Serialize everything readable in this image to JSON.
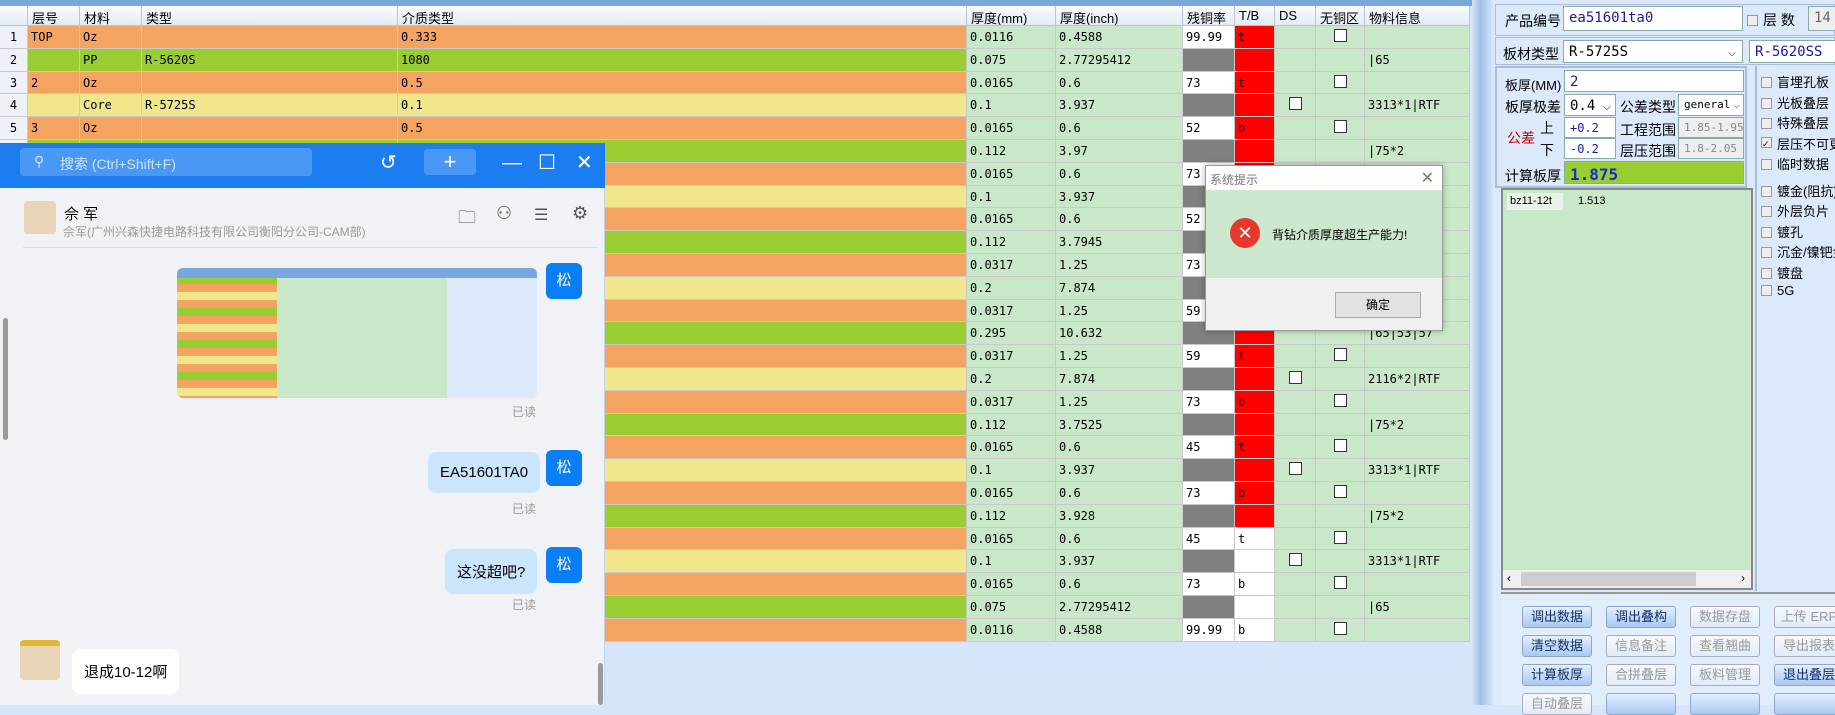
{
  "grid": {
    "headers": [
      "",
      "层号",
      "材料",
      "类型",
      "介质类型",
      "厚度(mm)",
      "厚度(inch)",
      "残铜率",
      "T/B",
      "DS",
      "无铜区",
      "物料信息"
    ],
    "rows": [
      {
        "n": "1",
        "layer": "TOP",
        "mat": "Oz",
        "type": "",
        "diel": "0.333",
        "mm": "0.0116",
        "inch": "0.4588",
        "res": "99.99",
        "tb": "t",
        "tb_red": true,
        "ds": false,
        "nocu": true,
        "info": "",
        "kind": "cu"
      },
      {
        "n": "2",
        "layer": "",
        "mat": "PP",
        "type": "R-5620S",
        "diel": "1080",
        "mm": "0.075",
        "inch": "2.77295412",
        "res": "",
        "tb": "",
        "tb_red": true,
        "ds": false,
        "nocu": false,
        "info": "|65",
        "kind": "pp"
      },
      {
        "n": "3",
        "layer": "2",
        "mat": "Oz",
        "type": "",
        "diel": "0.5",
        "mm": "0.0165",
        "inch": "0.6",
        "res": "73",
        "tb": "t",
        "tb_red": true,
        "ds": false,
        "nocu": true,
        "info": "",
        "kind": "cu"
      },
      {
        "n": "4",
        "layer": "",
        "mat": "Core",
        "type": "R-5725S",
        "diel": "0.1",
        "mm": "0.1",
        "inch": "3.937",
        "res": "",
        "tb": "",
        "tb_red": true,
        "ds": true,
        "nocu": false,
        "info": "3313*1|RTF",
        "kind": "core"
      },
      {
        "n": "5",
        "layer": "3",
        "mat": "Oz",
        "type": "",
        "diel": "0.5",
        "mm": "0.0165",
        "inch": "0.6",
        "res": "52",
        "tb": "b",
        "tb_red": true,
        "ds": false,
        "nocu": true,
        "info": "",
        "kind": "cu"
      },
      {
        "n": "",
        "mm": "0.112",
        "inch": "3.97",
        "res": "",
        "tb": "",
        "tb_red": true,
        "ds": false,
        "nocu": false,
        "info": "|75*2",
        "kind": "pp"
      },
      {
        "n": "",
        "mm": "0.0165",
        "inch": "0.6",
        "res": "73",
        "tb": "",
        "tb_red": true,
        "ds": false,
        "nocu": true,
        "info": "",
        "kind": "cu"
      },
      {
        "n": "",
        "mm": "0.1",
        "inch": "3.937",
        "res": "",
        "tb": "",
        "tb_red": true,
        "ds": true,
        "nocu": false,
        "info": "",
        "kind": "core"
      },
      {
        "n": "",
        "mm": "0.0165",
        "inch": "0.6",
        "res": "52",
        "tb": "",
        "tb_red": true,
        "ds": false,
        "nocu": true,
        "info": "",
        "kind": "cu"
      },
      {
        "n": "",
        "mm": "0.112",
        "inch": "3.7945",
        "res": "",
        "tb": "",
        "tb_red": true,
        "ds": false,
        "nocu": false,
        "info": "",
        "kind": "pp"
      },
      {
        "n": "",
        "mm": "0.0317",
        "inch": "1.25",
        "res": "73",
        "tb": "",
        "tb_red": true,
        "ds": false,
        "nocu": true,
        "info": "",
        "kind": "cu"
      },
      {
        "n": "",
        "mm": "0.2",
        "inch": "7.874",
        "res": "",
        "tb": "",
        "tb_red": true,
        "ds": true,
        "nocu": false,
        "info": "",
        "kind": "core"
      },
      {
        "n": "",
        "mm": "0.0317",
        "inch": "1.25",
        "res": "59",
        "tb": "",
        "tb_red": true,
        "ds": false,
        "nocu": true,
        "info": "",
        "kind": "cu"
      },
      {
        "n": "",
        "mm": "0.295",
        "inch": "10.632",
        "res": "",
        "tb": "",
        "tb_red": true,
        "ds": false,
        "nocu": false,
        "info": "|65|53|57",
        "kind": "pp"
      },
      {
        "n": "",
        "mm": "0.0317",
        "inch": "1.25",
        "res": "59",
        "tb": "t",
        "tb_red": true,
        "ds": false,
        "nocu": true,
        "info": "",
        "kind": "cu"
      },
      {
        "n": "",
        "mm": "0.2",
        "inch": "7.874",
        "res": "",
        "tb": "",
        "tb_red": true,
        "ds": true,
        "nocu": false,
        "info": "2116*2|RTF",
        "kind": "core"
      },
      {
        "n": "",
        "mm": "0.0317",
        "inch": "1.25",
        "res": "73",
        "tb": "b",
        "tb_red": true,
        "ds": false,
        "nocu": true,
        "info": "",
        "kind": "cu"
      },
      {
        "n": "",
        "mm": "0.112",
        "inch": "3.7525",
        "res": "",
        "tb": "",
        "tb_red": true,
        "ds": false,
        "nocu": false,
        "info": "|75*2",
        "kind": "pp"
      },
      {
        "n": "",
        "mm": "0.0165",
        "inch": "0.6",
        "res": "45",
        "tb": "t",
        "tb_red": true,
        "ds": false,
        "nocu": true,
        "info": "",
        "kind": "cu"
      },
      {
        "n": "",
        "mm": "0.1",
        "inch": "3.937",
        "res": "",
        "tb": "",
        "tb_red": true,
        "ds": true,
        "nocu": false,
        "info": "3313*1|RTF",
        "kind": "core"
      },
      {
        "n": "",
        "mm": "0.0165",
        "inch": "0.6",
        "res": "73",
        "tb": "b",
        "tb_red": true,
        "ds": false,
        "nocu": true,
        "info": "",
        "kind": "cu"
      },
      {
        "n": "",
        "mm": "0.112",
        "inch": "3.928",
        "res": "",
        "tb": "",
        "tb_red": true,
        "ds": false,
        "nocu": false,
        "info": "|75*2",
        "kind": "pp"
      },
      {
        "n": "",
        "mm": "0.0165",
        "inch": "0.6",
        "res": "45",
        "tb": "t",
        "tb_red": false,
        "ds": false,
        "nocu": true,
        "info": "",
        "kind": "cu"
      },
      {
        "n": "",
        "mm": "0.1",
        "inch": "3.937",
        "res": "",
        "tb": "",
        "tb_red": false,
        "ds": true,
        "nocu": false,
        "info": "3313*1|RTF",
        "kind": "core"
      },
      {
        "n": "",
        "mm": "0.0165",
        "inch": "0.6",
        "res": "73",
        "tb": "b",
        "tb_red": false,
        "ds": false,
        "nocu": true,
        "info": "",
        "kind": "cu"
      },
      {
        "n": "",
        "mm": "0.075",
        "inch": "2.77295412",
        "res": "",
        "tb": "",
        "tb_red": false,
        "ds": false,
        "nocu": false,
        "info": "|65",
        "kind": "pp"
      },
      {
        "n": "",
        "mm": "0.0116",
        "inch": "0.4588",
        "res": "99.99",
        "tb": "b",
        "tb_red": false,
        "ds": false,
        "nocu": true,
        "info": "",
        "kind": "cu"
      }
    ]
  },
  "colors": {
    "cu": "#f4a460",
    "pp": "#9acd32",
    "core": "#f0e68c",
    "cell": "#c9e8c9",
    "red": "#ff0000",
    "gray": "#808080"
  },
  "panel": {
    "product_label": "产品编号",
    "product_value": "ea51601ta0",
    "layers_label": "层 数",
    "layers_value": "14",
    "material_label": "板材类型",
    "material_value": "R-5725S",
    "material2_value": "R-5620SS",
    "thickness_label": "板厚(MM)",
    "thickness_value": "2",
    "tol_label": "板厚极差",
    "tol_value": "0.4",
    "tol_type_label": "公差类型",
    "tol_type_value": "general",
    "tol_red_label": "公差",
    "upper_label": "上",
    "lower_label": "下",
    "upper_value": "+0.2",
    "lower_value": "-0.2",
    "eng_range_label": "工程范围",
    "eng_range_value": "1.85-1.95",
    "press_range_label": "层压范围",
    "press_range_value": "1.8-2.05",
    "calc_label": "计算板厚",
    "calc_value": "1.875",
    "list": [
      {
        "name": "bz11-12t",
        "value": "1.513"
      }
    ],
    "checks": [
      "盲埋孔板",
      "光板叠层",
      "特殊叠层",
      "层压不可更改",
      "临时数据",
      "镀金(阻抗)",
      "外层负片",
      "镀孔",
      "沉金/镍钯金",
      "镀盘",
      "5G"
    ],
    "buttons": [
      {
        "label": "调出数据",
        "enabled": true
      },
      {
        "label": "调出叠构",
        "enabled": true
      },
      {
        "label": "数据存盘",
        "enabled": false
      },
      {
        "label": "上传 ERP",
        "enabled": false
      },
      {
        "label": "清空数据",
        "enabled": true
      },
      {
        "label": "信息备注",
        "enabled": false
      },
      {
        "label": "查看翘曲",
        "enabled": false
      },
      {
        "label": "导出报表",
        "enabled": false
      },
      {
        "label": "计算板厚",
        "enabled": true
      },
      {
        "label": "合拼叠层",
        "enabled": false
      },
      {
        "label": "板料管理",
        "enabled": false
      },
      {
        "label": "退出叠层",
        "enabled": true
      },
      {
        "label": "自动叠层",
        "enabled": false
      },
      {
        "label": "",
        "enabled": true
      },
      {
        "label": "",
        "enabled": true
      },
      {
        "label": "",
        "enabled": true
      }
    ]
  },
  "dialog": {
    "title": "系统提示",
    "message": "背钻介质厚度超生产能力!",
    "ok": "确定"
  },
  "chat": {
    "search_placeholder": "搜索 (Ctrl+Shift+F)",
    "contact_name": "佘 军",
    "contact_sub": "佘军(广州兴森快捷电路科技有限公司衡阳分公司-CAM部)",
    "me_avatar": "松",
    "read": "已读",
    "messages": [
      {
        "text": "EA51601TA0"
      },
      {
        "text": "这没超吧?"
      }
    ],
    "reply": "退成10-12啊"
  }
}
